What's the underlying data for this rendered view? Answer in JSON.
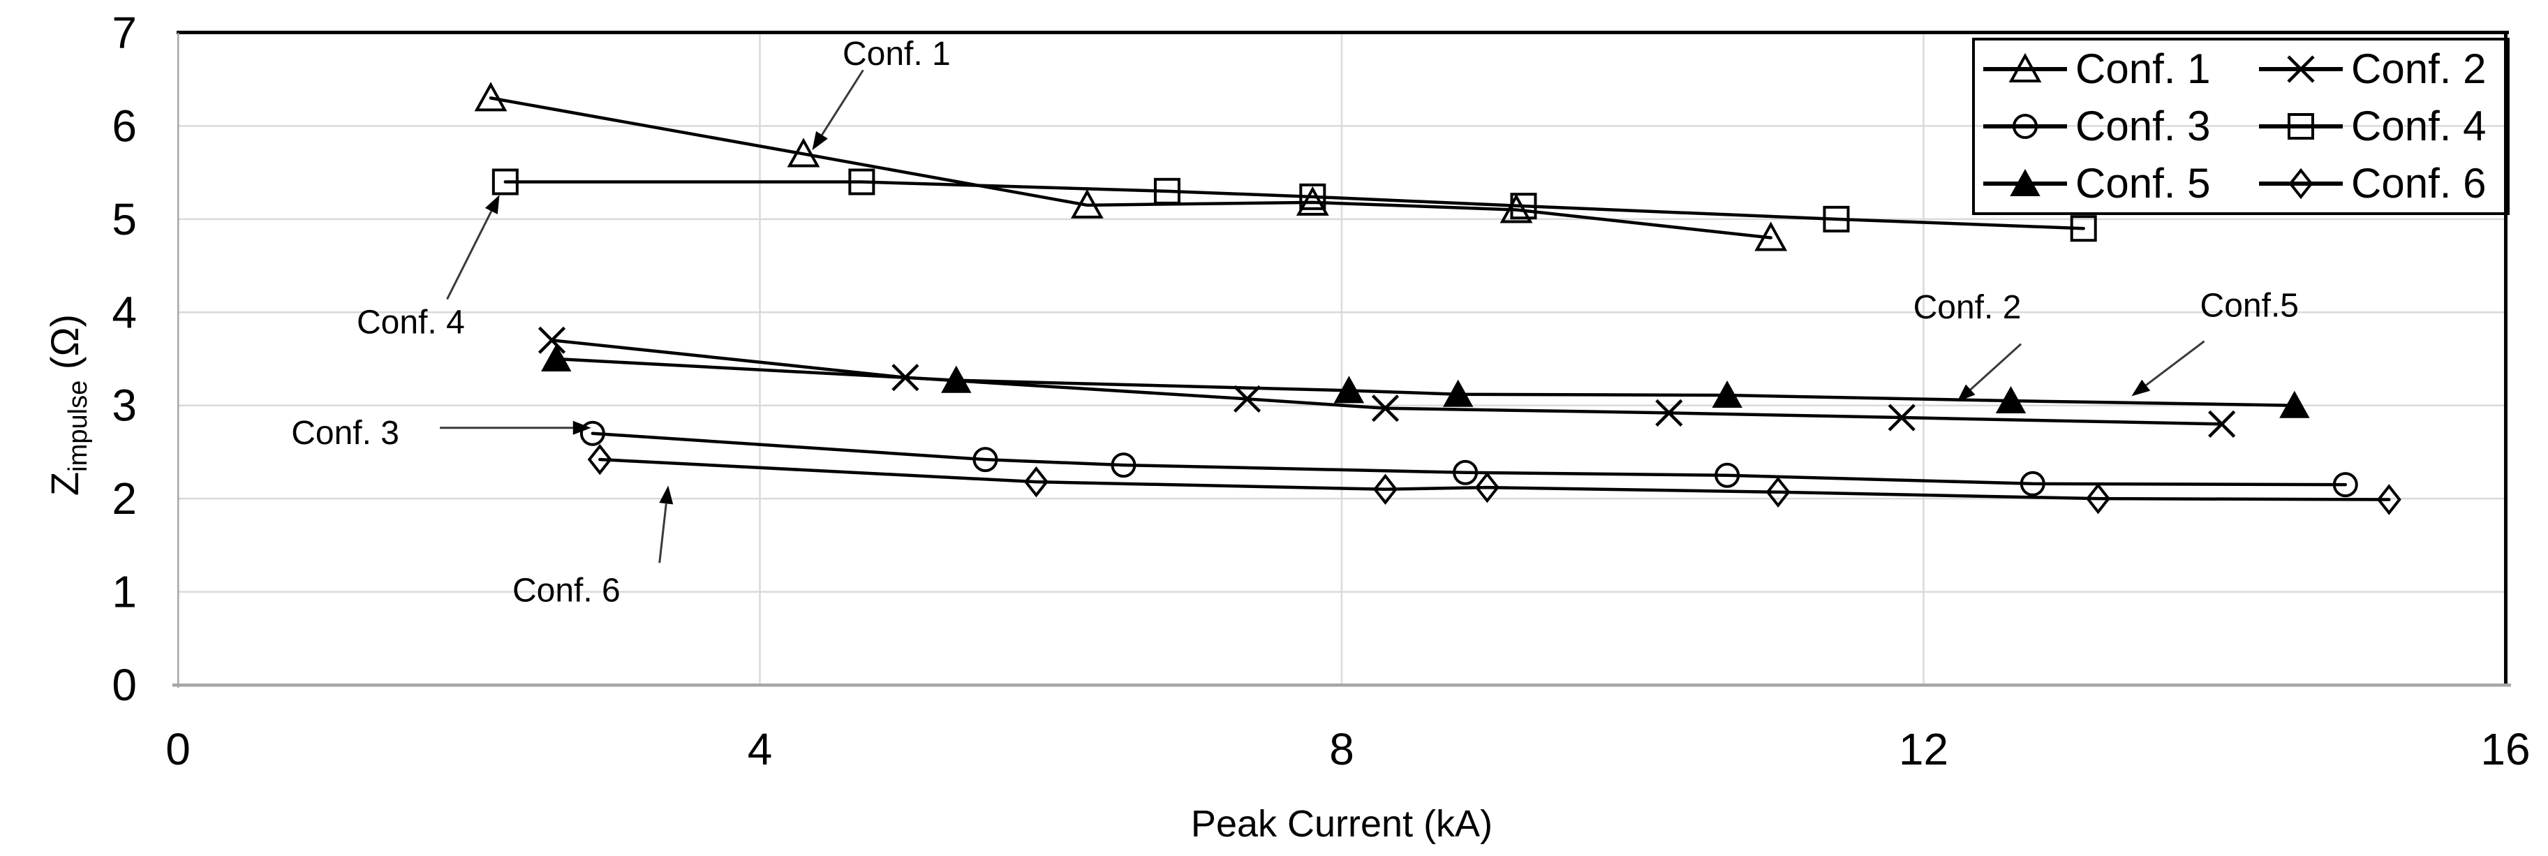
{
  "chart_data": {
    "type": "line",
    "title": "",
    "xlabel": "Peak Current (kA)",
    "ylabel_main": "Z",
    "ylabel_sub": "impulse",
    "ylabel_unit": " (Ω)",
    "xlim": [
      0,
      16
    ],
    "ylim": [
      0,
      7
    ],
    "x_ticks": [
      0,
      4,
      8,
      12,
      16
    ],
    "y_ticks": [
      0,
      1,
      2,
      3,
      4,
      5,
      6,
      7
    ],
    "grid": true,
    "legend": {
      "position": "top-right",
      "columns": 2
    },
    "colors": {
      "series": "#000000",
      "grid": "#d9d9d9",
      "axis_line": "#a6a6a6",
      "border": "#000000",
      "text": "#000000",
      "background": "#ffffff",
      "annotation_arrow": "#3a3a3a"
    },
    "series": [
      {
        "name": "Conf. 1",
        "marker": "triangle-open",
        "points": [
          [
            2.15,
            6.3
          ],
          [
            4.3,
            5.7
          ],
          [
            6.25,
            5.15
          ],
          [
            7.8,
            5.18
          ],
          [
            9.2,
            5.1
          ],
          [
            10.95,
            4.8
          ]
        ]
      },
      {
        "name": "Conf. 2",
        "marker": "x",
        "points": [
          [
            2.57,
            3.7
          ],
          [
            5.0,
            3.3
          ],
          [
            7.35,
            3.07
          ],
          [
            8.3,
            2.97
          ],
          [
            10.25,
            2.92
          ],
          [
            11.85,
            2.87
          ],
          [
            14.05,
            2.8
          ]
        ]
      },
      {
        "name": "Conf. 3",
        "marker": "circle-open",
        "points": [
          [
            2.85,
            2.7
          ],
          [
            5.55,
            2.42
          ],
          [
            6.5,
            2.36
          ],
          [
            8.85,
            2.28
          ],
          [
            10.65,
            2.25
          ],
          [
            12.75,
            2.16
          ],
          [
            14.9,
            2.15
          ]
        ]
      },
      {
        "name": "Conf. 4",
        "marker": "square-open",
        "points": [
          [
            2.25,
            5.4
          ],
          [
            4.7,
            5.4
          ],
          [
            6.8,
            5.3
          ],
          [
            7.8,
            5.24
          ],
          [
            9.25,
            5.14
          ],
          [
            11.4,
            5.0
          ],
          [
            13.1,
            4.9
          ]
        ]
      },
      {
        "name": "Conf. 5",
        "marker": "triangle-filled",
        "points": [
          [
            2.6,
            3.5
          ],
          [
            5.35,
            3.27
          ],
          [
            8.05,
            3.16
          ],
          [
            8.8,
            3.12
          ],
          [
            10.65,
            3.11
          ],
          [
            12.6,
            3.05
          ],
          [
            14.55,
            3.0
          ]
        ]
      },
      {
        "name": "Conf. 6",
        "marker": "diamond-open",
        "points": [
          [
            2.9,
            2.42
          ],
          [
            5.9,
            2.18
          ],
          [
            8.3,
            2.1
          ],
          [
            9.0,
            2.12
          ],
          [
            11.0,
            2.07
          ],
          [
            13.2,
            2.0
          ],
          [
            15.2,
            1.99
          ]
        ]
      }
    ],
    "annotations": [
      {
        "text": "Conf. 1",
        "tx": 4.94,
        "ty": 6.77,
        "x1": 4.71,
        "y1": 6.6,
        "x2": 4.36,
        "y2": 5.74
      },
      {
        "text": "Conf. 4",
        "tx": 1.6,
        "ty": 3.89,
        "x1": 1.85,
        "y1": 4.14,
        "x2": 2.21,
        "y2": 5.26
      },
      {
        "text": "Conf. 3",
        "tx": 1.15,
        "ty": 2.7,
        "x1": 1.8,
        "y1": 2.76,
        "x2": 2.84,
        "y2": 2.76
      },
      {
        "text": "Conf. 6",
        "tx": 2.67,
        "ty": 1.01,
        "x1": 3.31,
        "y1": 1.31,
        "x2": 3.37,
        "y2": 2.14
      },
      {
        "text": "Conf. 2",
        "tx": 12.3,
        "ty": 4.05,
        "x1": 12.67,
        "y1": 3.66,
        "x2": 12.23,
        "y2": 3.04
      },
      {
        "text": "Conf.5",
        "tx": 14.24,
        "ty": 4.07,
        "x1": 13.93,
        "y1": 3.69,
        "x2": 13.43,
        "y2": 3.1
      }
    ]
  }
}
